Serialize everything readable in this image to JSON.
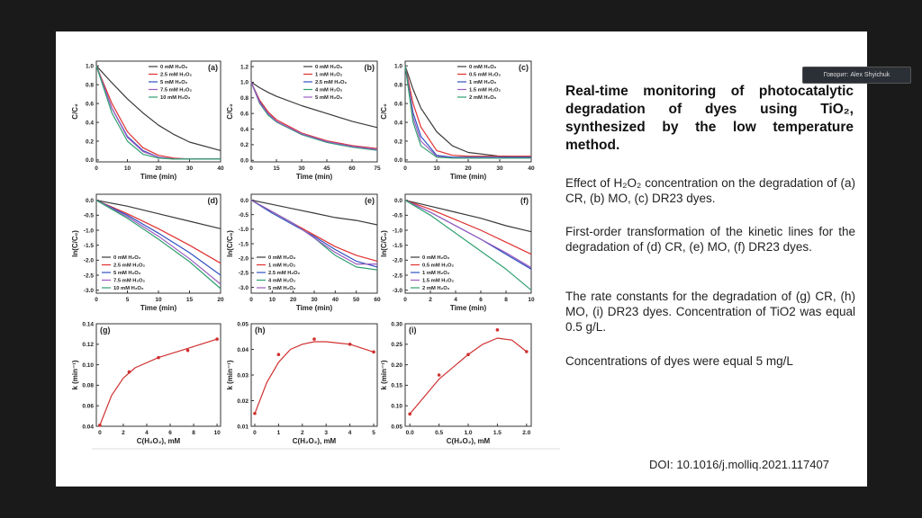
{
  "overlay_label": "Говорит: Alex Shyichuk",
  "slide": {
    "title": "Real-time monitoring of photocatalytic degradation of dyes using TiO₂, synthesized by the low temperature method.",
    "paragraphs": [
      "Effect of H₂O₂ concentration on the degradation of (a) CR, (b) MO, (c) DR23 dyes.",
      "First-order transformation of the kinetic lines for the degradation of (d) CR, (e) MO, (f) DR23 dyes.",
      "The rate constants for the degradation of (g) CR, (h) MO, (i) DR23 dyes. Concentration of TiO2 was equal 0.5 g/L.",
      "Concentrations of dyes were equal 5 mg/L"
    ],
    "doi": "DOI: 10.1016/j.molliq.2021.117407"
  },
  "charts": [
    {
      "type": "line",
      "panel": "(a)",
      "xlabel": "Time (min)",
      "ylabel": "C/C₀",
      "legend": "upper right",
      "xlim": [
        0,
        40
      ],
      "ylim": [
        -0.02,
        1.05
      ],
      "xticks": [
        0,
        10,
        20,
        30,
        40
      ],
      "yticks": [
        {
          "value": 0,
          "label": "0.0"
        },
        0.2,
        0.4,
        0.6,
        0.8,
        {
          "value": 1,
          "label": "1.0"
        }
      ],
      "x": [
        0,
        5,
        10,
        15,
        20,
        25,
        30,
        40
      ],
      "series": [
        {
          "name": "0 mM H₂O₂",
          "color": "#3a3a3a",
          "values": [
            1,
            0.82,
            0.65,
            0.5,
            0.37,
            0.27,
            0.19,
            0.1
          ]
        },
        {
          "name": "2.5 mM H₂O₂",
          "color": "#e03030",
          "values": [
            1,
            0.6,
            0.3,
            0.13,
            0.05,
            0.02,
            0.01,
            0.01
          ]
        },
        {
          "name": "5 mM H₂O₂",
          "color": "#3050c0",
          "values": [
            1,
            0.55,
            0.25,
            0.1,
            0.03,
            0.01,
            0.01,
            0.01
          ]
        },
        {
          "name": "7.5 mM H₂O₂",
          "color": "#9a5cc0",
          "values": [
            1,
            0.55,
            0.24,
            0.09,
            0.03,
            0.01,
            0.01,
            0.01
          ]
        },
        {
          "name": "10 mM H₂O₂",
          "color": "#30a070",
          "values": [
            1,
            0.5,
            0.2,
            0.06,
            0.02,
            0.01,
            0.01,
            0.01
          ]
        }
      ]
    },
    {
      "type": "line",
      "panel": "(b)",
      "xlabel": "Time (min)",
      "ylabel": "C/C₀",
      "legend": "upper right",
      "xlim": [
        0,
        75
      ],
      "ylim": [
        -0.02,
        1.27
      ],
      "xticks": [
        0,
        15,
        30,
        45,
        60,
        75
      ],
      "yticks": [
        {
          "value": 0,
          "label": "0.0"
        },
        0.2,
        0.4,
        0.6,
        0.8,
        {
          "value": 1,
          "label": "1.0"
        },
        1.2
      ],
      "x": [
        0,
        5,
        10,
        15,
        30,
        45,
        60,
        75
      ],
      "series": [
        {
          "name": "0 mM H₂O₂",
          "color": "#3a3a3a",
          "values": [
            1,
            0.93,
            0.87,
            0.82,
            0.7,
            0.6,
            0.5,
            0.42
          ]
        },
        {
          "name": "1 mM H₂O₂",
          "color": "#e03030",
          "values": [
            1,
            0.77,
            0.62,
            0.52,
            0.35,
            0.25,
            0.19,
            0.15
          ]
        },
        {
          "name": "2.5 mM H₂O₂",
          "color": "#3050c0",
          "values": [
            1,
            0.75,
            0.6,
            0.5,
            0.33,
            0.23,
            0.17,
            0.13
          ]
        },
        {
          "name": "4 mM H₂O₂",
          "color": "#30a070",
          "values": [
            1,
            0.73,
            0.58,
            0.49,
            0.33,
            0.23,
            0.17,
            0.13
          ]
        },
        {
          "name": "5 mM H₂O₂",
          "color": "#9a5cc0",
          "values": [
            1,
            0.74,
            0.6,
            0.5,
            0.34,
            0.24,
            0.18,
            0.14
          ]
        }
      ]
    },
    {
      "type": "line",
      "panel": "(c)",
      "xlabel": "Time (min)",
      "ylabel": "C/C₀",
      "legend": "upper right",
      "xlim": [
        0,
        40
      ],
      "ylim": [
        -0.02,
        1.05
      ],
      "xticks": [
        0,
        10,
        20,
        30,
        40
      ],
      "yticks": [
        {
          "value": 0,
          "label": "0.0"
        },
        0.2,
        0.4,
        0.6,
        0.8,
        {
          "value": 1,
          "label": "1.0"
        }
      ],
      "x": [
        0,
        2.5,
        5,
        10,
        15,
        20,
        30,
        40
      ],
      "series": [
        {
          "name": "0 mM H₂O₂",
          "color": "#3a3a3a",
          "values": [
            1,
            0.75,
            0.55,
            0.3,
            0.15,
            0.08,
            0.04,
            0.03
          ]
        },
        {
          "name": "0.5 mM H₂O₂",
          "color": "#e03030",
          "values": [
            1,
            0.6,
            0.35,
            0.1,
            0.05,
            0.04,
            0.04,
            0.04
          ]
        },
        {
          "name": "1 mM H₂O₂",
          "color": "#3050c0",
          "values": [
            1,
            0.5,
            0.25,
            0.05,
            0.03,
            0.03,
            0.03,
            0.03
          ]
        },
        {
          "name": "1.5 mM H₂O₂",
          "color": "#9a5cc0",
          "values": [
            1,
            0.45,
            0.2,
            0.04,
            0.02,
            0.02,
            0.02,
            0.02
          ]
        },
        {
          "name": "2 mM H₂O₂",
          "color": "#30a070",
          "values": [
            1,
            0.4,
            0.15,
            0.03,
            0.02,
            0.02,
            0.02,
            0.02
          ]
        }
      ]
    },
    {
      "type": "line",
      "panel": "(d)",
      "xlabel": "Time (min)",
      "ylabel": "ln(C/C₀)",
      "legend": "lower left",
      "xlim": [
        0,
        20
      ],
      "ylim": [
        -3.1,
        0.2
      ],
      "xticks": [
        0,
        5,
        10,
        15,
        20
      ],
      "yticks": [
        {
          "value": 0,
          "label": "0.0"
        },
        -0.5,
        {
          "value": -1,
          "label": "-1.0"
        },
        -1.5,
        {
          "value": -2,
          "label": "-2.0"
        },
        -2.5,
        {
          "value": -3,
          "label": "-3.0"
        }
      ],
      "x": [
        0,
        5,
        10,
        15,
        20
      ],
      "series": [
        {
          "name": "0 mM H₂O₂",
          "color": "#3a3a3a",
          "values": [
            0,
            -0.2,
            -0.45,
            -0.7,
            -0.95
          ]
        },
        {
          "name": "2.5 mM H₂O₂",
          "color": "#e03030",
          "values": [
            0,
            -0.45,
            -0.95,
            -1.5,
            -2.1
          ]
        },
        {
          "name": "5 mM H₂O₂",
          "color": "#3050c0",
          "values": [
            0,
            -0.5,
            -1.1,
            -1.75,
            -2.5
          ]
        },
        {
          "name": "7.5 mM H₂O₂",
          "color": "#9a5cc0",
          "values": [
            0,
            -0.55,
            -1.2,
            -1.95,
            -2.8
          ]
        },
        {
          "name": "10 mM H₂O₂",
          "color": "#30a070",
          "values": [
            0,
            -0.6,
            -1.3,
            -2.05,
            -2.95
          ]
        }
      ]
    },
    {
      "type": "line",
      "panel": "(e)",
      "xlabel": "Time (min)",
      "ylabel": "ln(C/C₀)",
      "legend": "lower left",
      "xlim": [
        0,
        60
      ],
      "ylim": [
        -3.2,
        0.2
      ],
      "xticks": [
        0,
        10,
        20,
        30,
        40,
        50,
        60
      ],
      "yticks": [
        {
          "value": 0,
          "label": "0.0"
        },
        -0.5,
        {
          "value": -1,
          "label": "-1.0"
        },
        -1.5,
        {
          "value": -2,
          "label": "-2.0"
        },
        -2.5,
        {
          "value": -3,
          "label": "-3.0"
        }
      ],
      "x": [
        0,
        10,
        20,
        30,
        40,
        50,
        60
      ],
      "series": [
        {
          "name": "0 mM H₂O₂",
          "color": "#3a3a3a",
          "values": [
            0,
            -0.15,
            -0.3,
            -0.45,
            -0.6,
            -0.7,
            -0.85
          ]
        },
        {
          "name": "1 mM H₂O₂",
          "color": "#e03030",
          "values": [
            0,
            -0.4,
            -0.8,
            -1.2,
            -1.6,
            -1.9,
            -2.1
          ]
        },
        {
          "name": "2.5 mM H₂O₂",
          "color": "#3050c0",
          "values": [
            0,
            -0.45,
            -0.85,
            -1.25,
            -1.7,
            -2.1,
            -2.3
          ]
        },
        {
          "name": "4 mM H₂O₂",
          "color": "#30a070",
          "values": [
            0,
            -0.4,
            -0.8,
            -1.3,
            -1.9,
            -2.3,
            -2.4
          ]
        },
        {
          "name": "5 mM H₂O₂",
          "color": "#9a5cc0",
          "values": [
            0,
            -0.4,
            -0.8,
            -1.3,
            -1.8,
            -2.2,
            -2.2
          ]
        }
      ]
    },
    {
      "type": "line",
      "panel": "(f)",
      "xlabel": "Time (min)",
      "ylabel": "ln(C/C₀)",
      "legend": "lower left",
      "xlim": [
        0,
        10
      ],
      "ylim": [
        -3.1,
        0.2
      ],
      "xticks": [
        0,
        2,
        4,
        6,
        8,
        10
      ],
      "yticks": [
        {
          "value": 0,
          "label": "0.0"
        },
        -0.5,
        {
          "value": -1,
          "label": "-1.0"
        },
        -1.5,
        {
          "value": -2,
          "label": "-2.0"
        },
        -2.5,
        {
          "value": -3,
          "label": "-3.0"
        }
      ],
      "x": [
        0,
        2,
        4,
        6,
        8,
        10
      ],
      "series": [
        {
          "name": "0 mM H₂O₂",
          "color": "#3a3a3a",
          "values": [
            0,
            -0.2,
            -0.4,
            -0.6,
            -0.85,
            -1.05
          ]
        },
        {
          "name": "0.5 mM H₂O₂",
          "color": "#e03030",
          "values": [
            0,
            -0.3,
            -0.65,
            -1,
            -1.4,
            -1.8
          ]
        },
        {
          "name": "1 mM H₂O₂",
          "color": "#3050c0",
          "values": [
            0,
            -0.4,
            -0.85,
            -1.3,
            -1.8,
            -2.3
          ]
        },
        {
          "name": "1.5 mM H₂O₂",
          "color": "#9a5cc0",
          "values": [
            0,
            -0.4,
            -0.85,
            -1.3,
            -1.75,
            -2.25
          ]
        },
        {
          "name": "2 mM H₂O₂",
          "color": "#30a070",
          "values": [
            0,
            -0.5,
            -1.1,
            -1.7,
            -2.3,
            -3
          ]
        }
      ]
    },
    {
      "type": "scatter",
      "panel": "(g)",
      "xlabel": "C(H₂O₂), mM",
      "ylabel": "k (min⁻¹)",
      "xlim": [
        -0.3,
        10.3
      ],
      "ylim": [
        0.04,
        0.14
      ],
      "xticks": [
        0,
        2,
        4,
        6,
        8,
        10
      ],
      "yticks": [
        0.04,
        0.06,
        0.08,
        {
          "value": 0.1,
          "label": "0.10"
        },
        0.12,
        0.14
      ],
      "color": "#d03030",
      "x": [
        0,
        2.5,
        5,
        7.5,
        10
      ],
      "values": [
        0.041,
        0.093,
        0.107,
        0.114,
        0.125
      ],
      "fit": {
        "x": [
          0,
          1,
          2,
          3,
          5,
          7.5,
          10
        ],
        "values": [
          0.041,
          0.07,
          0.087,
          0.097,
          0.107,
          0.116,
          0.125
        ]
      }
    },
    {
      "type": "scatter",
      "panel": "(h)",
      "xlabel": "C(H₂O₂), mM",
      "ylabel": "k (min⁻¹)",
      "xlim": [
        -0.15,
        5.15
      ],
      "ylim": [
        0.01,
        0.05
      ],
      "xticks": [
        0,
        1,
        2,
        3,
        4,
        5
      ],
      "yticks": [
        0.01,
        0.02,
        0.03,
        0.04,
        0.05
      ],
      "color": "#d03030",
      "x": [
        0,
        1,
        2.5,
        4,
        5
      ],
      "values": [
        0.015,
        0.038,
        0.044,
        0.042,
        0.039
      ],
      "fit": {
        "x": [
          0,
          0.5,
          1,
          1.5,
          2,
          2.5,
          3,
          4,
          5
        ],
        "values": [
          0.015,
          0.027,
          0.035,
          0.04,
          0.042,
          0.043,
          0.043,
          0.042,
          0.039
        ]
      }
    },
    {
      "type": "scatter",
      "panel": "(i)",
      "xlabel": "C(H₂O₂), mM",
      "ylabel": "k (min⁻¹)",
      "xlim": [
        -0.08,
        2.08
      ],
      "ylim": [
        0.05,
        0.3
      ],
      "xticks": [
        {
          "value": 0,
          "label": "0.0"
        },
        0.5,
        {
          "value": 1,
          "label": "1.0"
        },
        1.5,
        {
          "value": 2,
          "label": "2.0"
        }
      ],
      "yticks": [
        0.05,
        {
          "value": 0.1,
          "label": "0.10"
        },
        0.15,
        {
          "value": 0.2,
          "label": "0.20"
        },
        0.25,
        {
          "value": 0.3,
          "label": "0.30"
        }
      ],
      "color": "#d03030",
      "x": [
        0,
        0.5,
        1,
        1.5,
        2
      ],
      "values": [
        0.08,
        0.175,
        0.225,
        0.285,
        0.232
      ],
      "fit": {
        "x": [
          0,
          0.5,
          1,
          1.25,
          1.5,
          1.75,
          2
        ],
        "values": [
          0.08,
          0.165,
          0.225,
          0.25,
          0.265,
          0.26,
          0.232
        ]
      }
    }
  ]
}
